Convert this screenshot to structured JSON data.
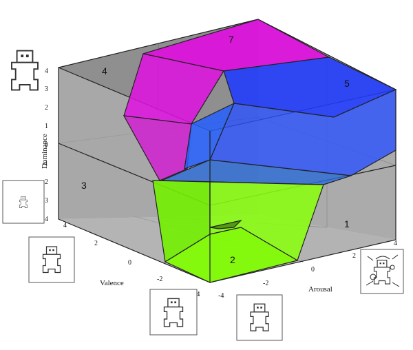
{
  "figure": {
    "axes": {
      "dominance": {
        "label": "Dominance",
        "ticks": [
          "4",
          "3",
          "2",
          "1",
          "0",
          "-1",
          "-2",
          "-3",
          "-4"
        ]
      },
      "valence": {
        "label": "Valence",
        "ticks": [
          "4",
          "2",
          "0",
          "-2",
          "-4"
        ]
      },
      "arousal": {
        "label": "Arousal",
        "ticks": [
          "-4",
          "-2",
          "0",
          "2",
          "4"
        ]
      }
    },
    "regions": [
      {
        "id": "1",
        "label": "1"
      },
      {
        "id": "2",
        "label": "2",
        "color": "#80ff00"
      },
      {
        "id": "3",
        "label": "3"
      },
      {
        "id": "4",
        "label": "4"
      },
      {
        "id": "5",
        "label": "5",
        "color": "#1e3cff"
      },
      {
        "id": "7",
        "label": "7",
        "color": "#ff00ff"
      }
    ],
    "icons": [
      "sam-manikin-icon",
      "sam-manikin-icon",
      "sam-manikin-icon",
      "sam-manikin-icon",
      "sam-manikin-icon",
      "sam-manikin-icon"
    ]
  }
}
